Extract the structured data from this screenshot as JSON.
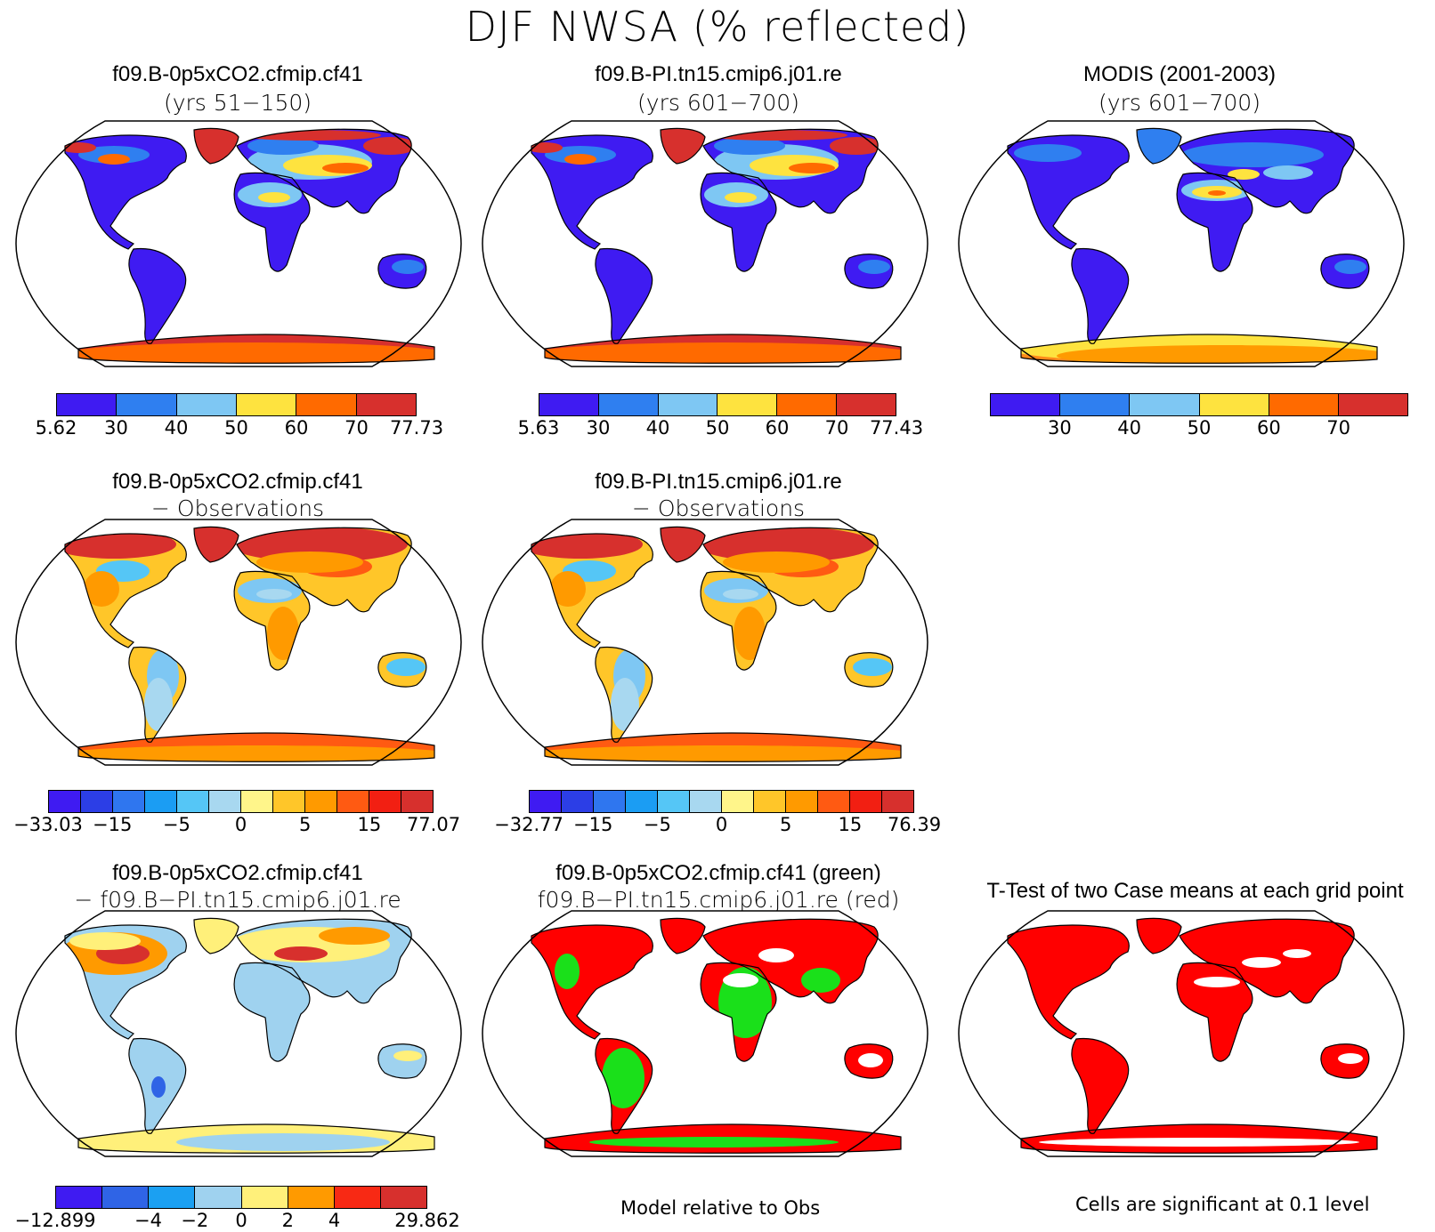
{
  "title": "DJF NWSA (% reflected)",
  "panels": [
    {
      "line1": "f09.B-0p5xCO2.cfmip.cf41",
      "line2": "(yrs 51−150)",
      "scheme": "abs",
      "polar": "#d7302d"
    },
    {
      "line1": "f09.B-PI.tn15.cmip6.j01.re",
      "line2": "(yrs 601−700)",
      "scheme": "abs",
      "polar": "#d7302d"
    },
    {
      "line1": "MODIS (2001-2003)",
      "line2": "(yrs 601−700)",
      "scheme": "obs",
      "polar": "#ff8a1a"
    },
    {
      "line1": "f09.B-0p5xCO2.cfmip.cf41",
      "line2": "− Observations",
      "scheme": "diff",
      "polar": "#e8541e"
    },
    {
      "line1": "f09.B-PI.tn15.cmip6.j01.re",
      "line2": "− Observations",
      "scheme": "diff",
      "polar": "#e8541e"
    },
    {
      "line1": "f09.B-0p5xCO2.cfmip.cf41",
      "line2": "− f09.B−PI.tn15.cmip6.j01.re",
      "scheme": "case",
      "polar": "#fff07a"
    },
    {
      "line1": "f09.B-0p5xCO2.cfmip.cf41 (green)",
      "line2": "f09.B−PI.tn15.cmip6.j01.re (red)",
      "scheme": "gr",
      "polar": "#ff0000"
    },
    {
      "line1": "T-Test of two Case means at each grid point",
      "line2": "",
      "scheme": "tt",
      "polar": "#ff0000"
    }
  ],
  "colorbars": [
    {
      "colors": [
        "#3f1bf2",
        "#2f7ff0",
        "#7ec7f3",
        "#fee33f",
        "#ff6a00",
        "#d7302d"
      ],
      "labels": [
        "5.62",
        "30",
        "40",
        "50",
        "60",
        "70",
        "77.73"
      ]
    },
    {
      "colors": [
        "#3f1bf2",
        "#2f7ff0",
        "#7ec7f3",
        "#fee33f",
        "#ff6a00",
        "#d7302d"
      ],
      "labels": [
        "5.63",
        "30",
        "40",
        "50",
        "60",
        "70",
        "77.43"
      ]
    },
    {
      "colors": [
        "#3f1bf2",
        "#2f7ff0",
        "#7ec7f3",
        "#fee33f",
        "#ff6a00",
        "#d7302d"
      ],
      "labels": [
        "",
        "30",
        "40",
        "50",
        "60",
        "70",
        ""
      ]
    },
    {
      "colors": [
        "#3f1bf2",
        "#2c3ee6",
        "#2f76ef",
        "#1b9df3",
        "#55c6f6",
        "#a8d8f0",
        "#fff58a",
        "#ffc629",
        "#ff9a00",
        "#ff5a12",
        "#f21f12",
        "#d7302d"
      ],
      "labels": [
        "−33.03",
        "−15",
        "−5",
        "0",
        "5",
        "15",
        "77.07"
      ]
    },
    {
      "colors": [
        "#3f1bf2",
        "#2c3ee6",
        "#2f76ef",
        "#1b9df3",
        "#55c6f6",
        "#a8d8f0",
        "#fff58a",
        "#ffc629",
        "#ff9a00",
        "#ff5a12",
        "#f21f12",
        "#d7302d"
      ],
      "labels": [
        "−32.77",
        "−15",
        "−5",
        "0",
        "5",
        "15",
        "76.39"
      ]
    },
    {
      "colors": [
        "#3f1bf2",
        "#2f64e6",
        "#1ba0f2",
        "#9fd2ef",
        "#fff07a",
        "#ff9a00",
        "#f82914",
        "#d7302d"
      ],
      "labels": [
        "−12.899",
        "−4",
        "−2",
        "0",
        "2",
        "4",
        "29.862"
      ]
    }
  ],
  "notes": {
    "model_obs": "Model relative to Obs",
    "significance": "Cells are significant at 0.1 level"
  }
}
